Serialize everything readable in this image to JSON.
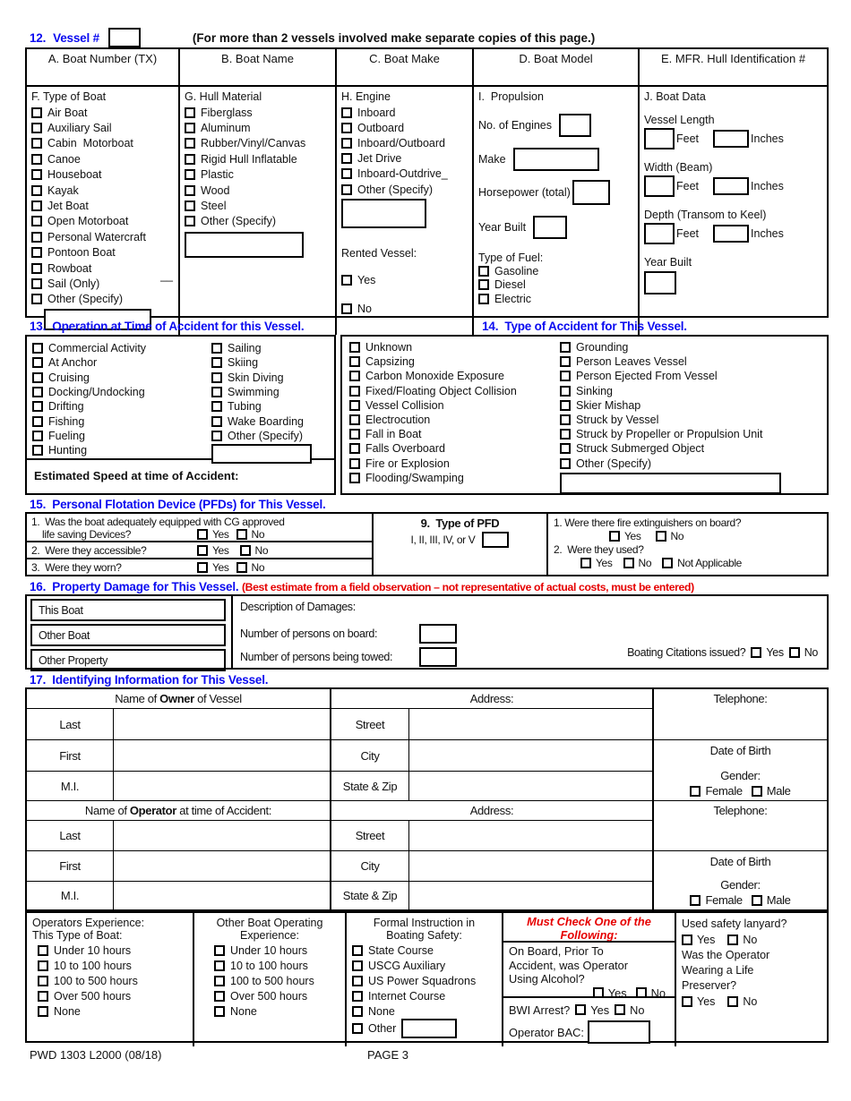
{
  "colors": {
    "heading_blue": "#0b0bf0",
    "alert_red": "#e60000"
  },
  "common": {
    "yes": "Yes",
    "no": "No",
    "not_applicable": "Not Applicable"
  },
  "header": {
    "field_number": "12.",
    "field_label": "Vessel #",
    "note": "(For more than 2 vessels involved make separate copies of this page.)"
  },
  "vessel_table": {
    "columns": [
      "A. Boat Number (TX)",
      "B. Boat Name",
      "C. Boat Make",
      "D. Boat Model",
      "E. MFR. Hull Identification #"
    ],
    "type_of_boat": {
      "title": "F. Type of Boat",
      "items": [
        "Air Boat",
        "Auxiliary Sail",
        "Cabin  Motorboat",
        "Canoe",
        "Houseboat",
        "Kayak",
        "Jet Boat",
        "Open Motorboat",
        "Personal Watercraft",
        "Pontoon Boat",
        "Rowboat",
        "Sail (Only)",
        "Other (Specify)"
      ],
      "stray_mark": "__"
    },
    "hull_material": {
      "title": "G. Hull Material",
      "items": [
        "Fiberglass",
        "Aluminum",
        "Rubber/Vinyl/Canvas",
        "Rigid Hull Inflatable",
        "Plastic",
        "Wood",
        "Steel",
        "Other (Specify)"
      ]
    },
    "engine": {
      "title": "H. Engine",
      "items": [
        "Inboard",
        "Outboard",
        "Inboard/Outboard",
        "Jet Drive",
        "Inboard-Outdrive_",
        "Other (Specify)"
      ],
      "rented_vessel_label": "Rented Vessel:"
    },
    "propulsion": {
      "title": "I.  Propulsion",
      "no_of_engines": "No. of Engines",
      "make": "Make",
      "horsepower": "Horsepower (total)",
      "year_built": "Year Built",
      "type_of_fuel": "Type of Fuel:",
      "fuel_items": [
        "Gasoline",
        "Diesel",
        "Electric"
      ]
    },
    "boat_data": {
      "title": "J. Boat Data",
      "vessel_length": "Vessel Length",
      "width_beam": "Width (Beam)",
      "depth": "Depth (Transom to Keel)",
      "year_built": "Year Built",
      "feet": "Feet",
      "inches": "Inches"
    }
  },
  "section13": {
    "heading": "13.  Operation at Time of Accident for this Vessel.",
    "col1": [
      "Commercial Activity",
      "At Anchor",
      "Cruising",
      "Docking/Undocking",
      "Drifting",
      "Fishing",
      "Fueling",
      "Hunting"
    ],
    "col2": [
      "Sailing",
      "Skiing",
      "Skin Diving",
      "Swimming",
      "Tubing",
      "Wake Boarding",
      "Other (Specify)"
    ],
    "estimated_speed": "Estimated Speed at time of Accident:"
  },
  "section14": {
    "heading": "14.  Type of Accident for This Vessel.",
    "col1": [
      "Unknown",
      "Capsizing",
      "Carbon Monoxide Exposure",
      "Fixed/Floating Object Collision",
      "Vessel Collision",
      "Electrocution",
      "Fall in Boat",
      "Falls Overboard",
      "Fire or Explosion",
      "Flooding/Swamping"
    ],
    "col2": [
      "Grounding",
      "Person Leaves Vessel",
      "Person Ejected From Vessel",
      "Sinking",
      "Skier Mishap",
      "Struck by Vessel",
      "Struck by Propeller or Propulsion Unit",
      "Struck Submerged Object",
      "Other (Specify)"
    ]
  },
  "section15": {
    "heading": "15.  Personal Flotation Device (PFDs) for This Vessel.",
    "q1_line1": "1.  Was the boat adequately equipped with CG approved",
    "q1_line2": "life saving Devices?",
    "q2": "2.  Were they accessible?",
    "q3": "3.  Were they worn?",
    "pfd_title": "9.  Type of PFD",
    "pfd_types": "I, II, III, IV, or V",
    "fire_q1": "1. Were there fire extinguishers on board?",
    "fire_q2": "2.  Were they used?"
  },
  "section16": {
    "heading": "16.  Property Damage for This Vessel.",
    "heading_note": "(Best estimate from a field observation – not representative of actual costs, must be entered)",
    "damage_rows": [
      "This Boat",
      "Other Boat",
      "Other Property"
    ],
    "description_label": "Description of Damages:",
    "persons_on_board": "Number of persons on board:",
    "persons_towed": "Number of persons being towed:",
    "citations": "Boating Citations issued?"
  },
  "section17": {
    "heading": "17.  Identifying Information for This Vessel.",
    "owner_prefix": "Name of ",
    "owner_bold": "Owner",
    "owner_suffix": " of Vessel",
    "operator_prefix": "Name of ",
    "operator_bold": "Operator",
    "operator_suffix": " at time of Accident:",
    "address_label": "Address:",
    "telephone_label": "Telephone:",
    "name_rows": [
      "Last",
      "First",
      "M.I."
    ],
    "address_rows": [
      "Street",
      "City",
      "State & Zip"
    ],
    "dob_label": "Date of Birth",
    "gender_label": "Gender:",
    "female": "Female",
    "male": "Male"
  },
  "bottom": {
    "operators_experience": {
      "title1": "Operators Experience:",
      "title2": "This Type of Boat:",
      "items": [
        "Under 10 hours",
        "10 to 100 hours",
        "100 to 500 hours",
        "Over 500 hours",
        "None"
      ]
    },
    "other_experience": {
      "title1": "Other Boat Operating",
      "title2": "Experience:",
      "items": [
        "Under 10 hours",
        "10 to 100 hours",
        "100 to 500 hours",
        "Over 500 hours",
        "None"
      ]
    },
    "formal_instruction": {
      "title1": "Formal Instruction in",
      "title2": "Boating Safety:",
      "items": [
        "State Course",
        "USCG Auxiliary",
        "US Power Squadrons",
        "Internet Course",
        "None"
      ],
      "other_label": "Other"
    },
    "alcohol": {
      "title1": "Must Check One of the",
      "title2": "Following:",
      "q1_l1": "On Board, Prior To",
      "q1_l2": "Accident, was Operator",
      "q1_l3": "Using Alcohol?",
      "bwi": "BWI Arrest?",
      "bac": "Operator BAC:"
    },
    "lanyard": {
      "q1": "Used safety lanyard?",
      "q2_l1": "Was the Operator",
      "q2_l2": "Wearing a Life",
      "q2_l3": "Preserver?"
    }
  },
  "footer": {
    "form_number": "PWD 1303 L2000 (08/18)",
    "page": "PAGE 3"
  }
}
